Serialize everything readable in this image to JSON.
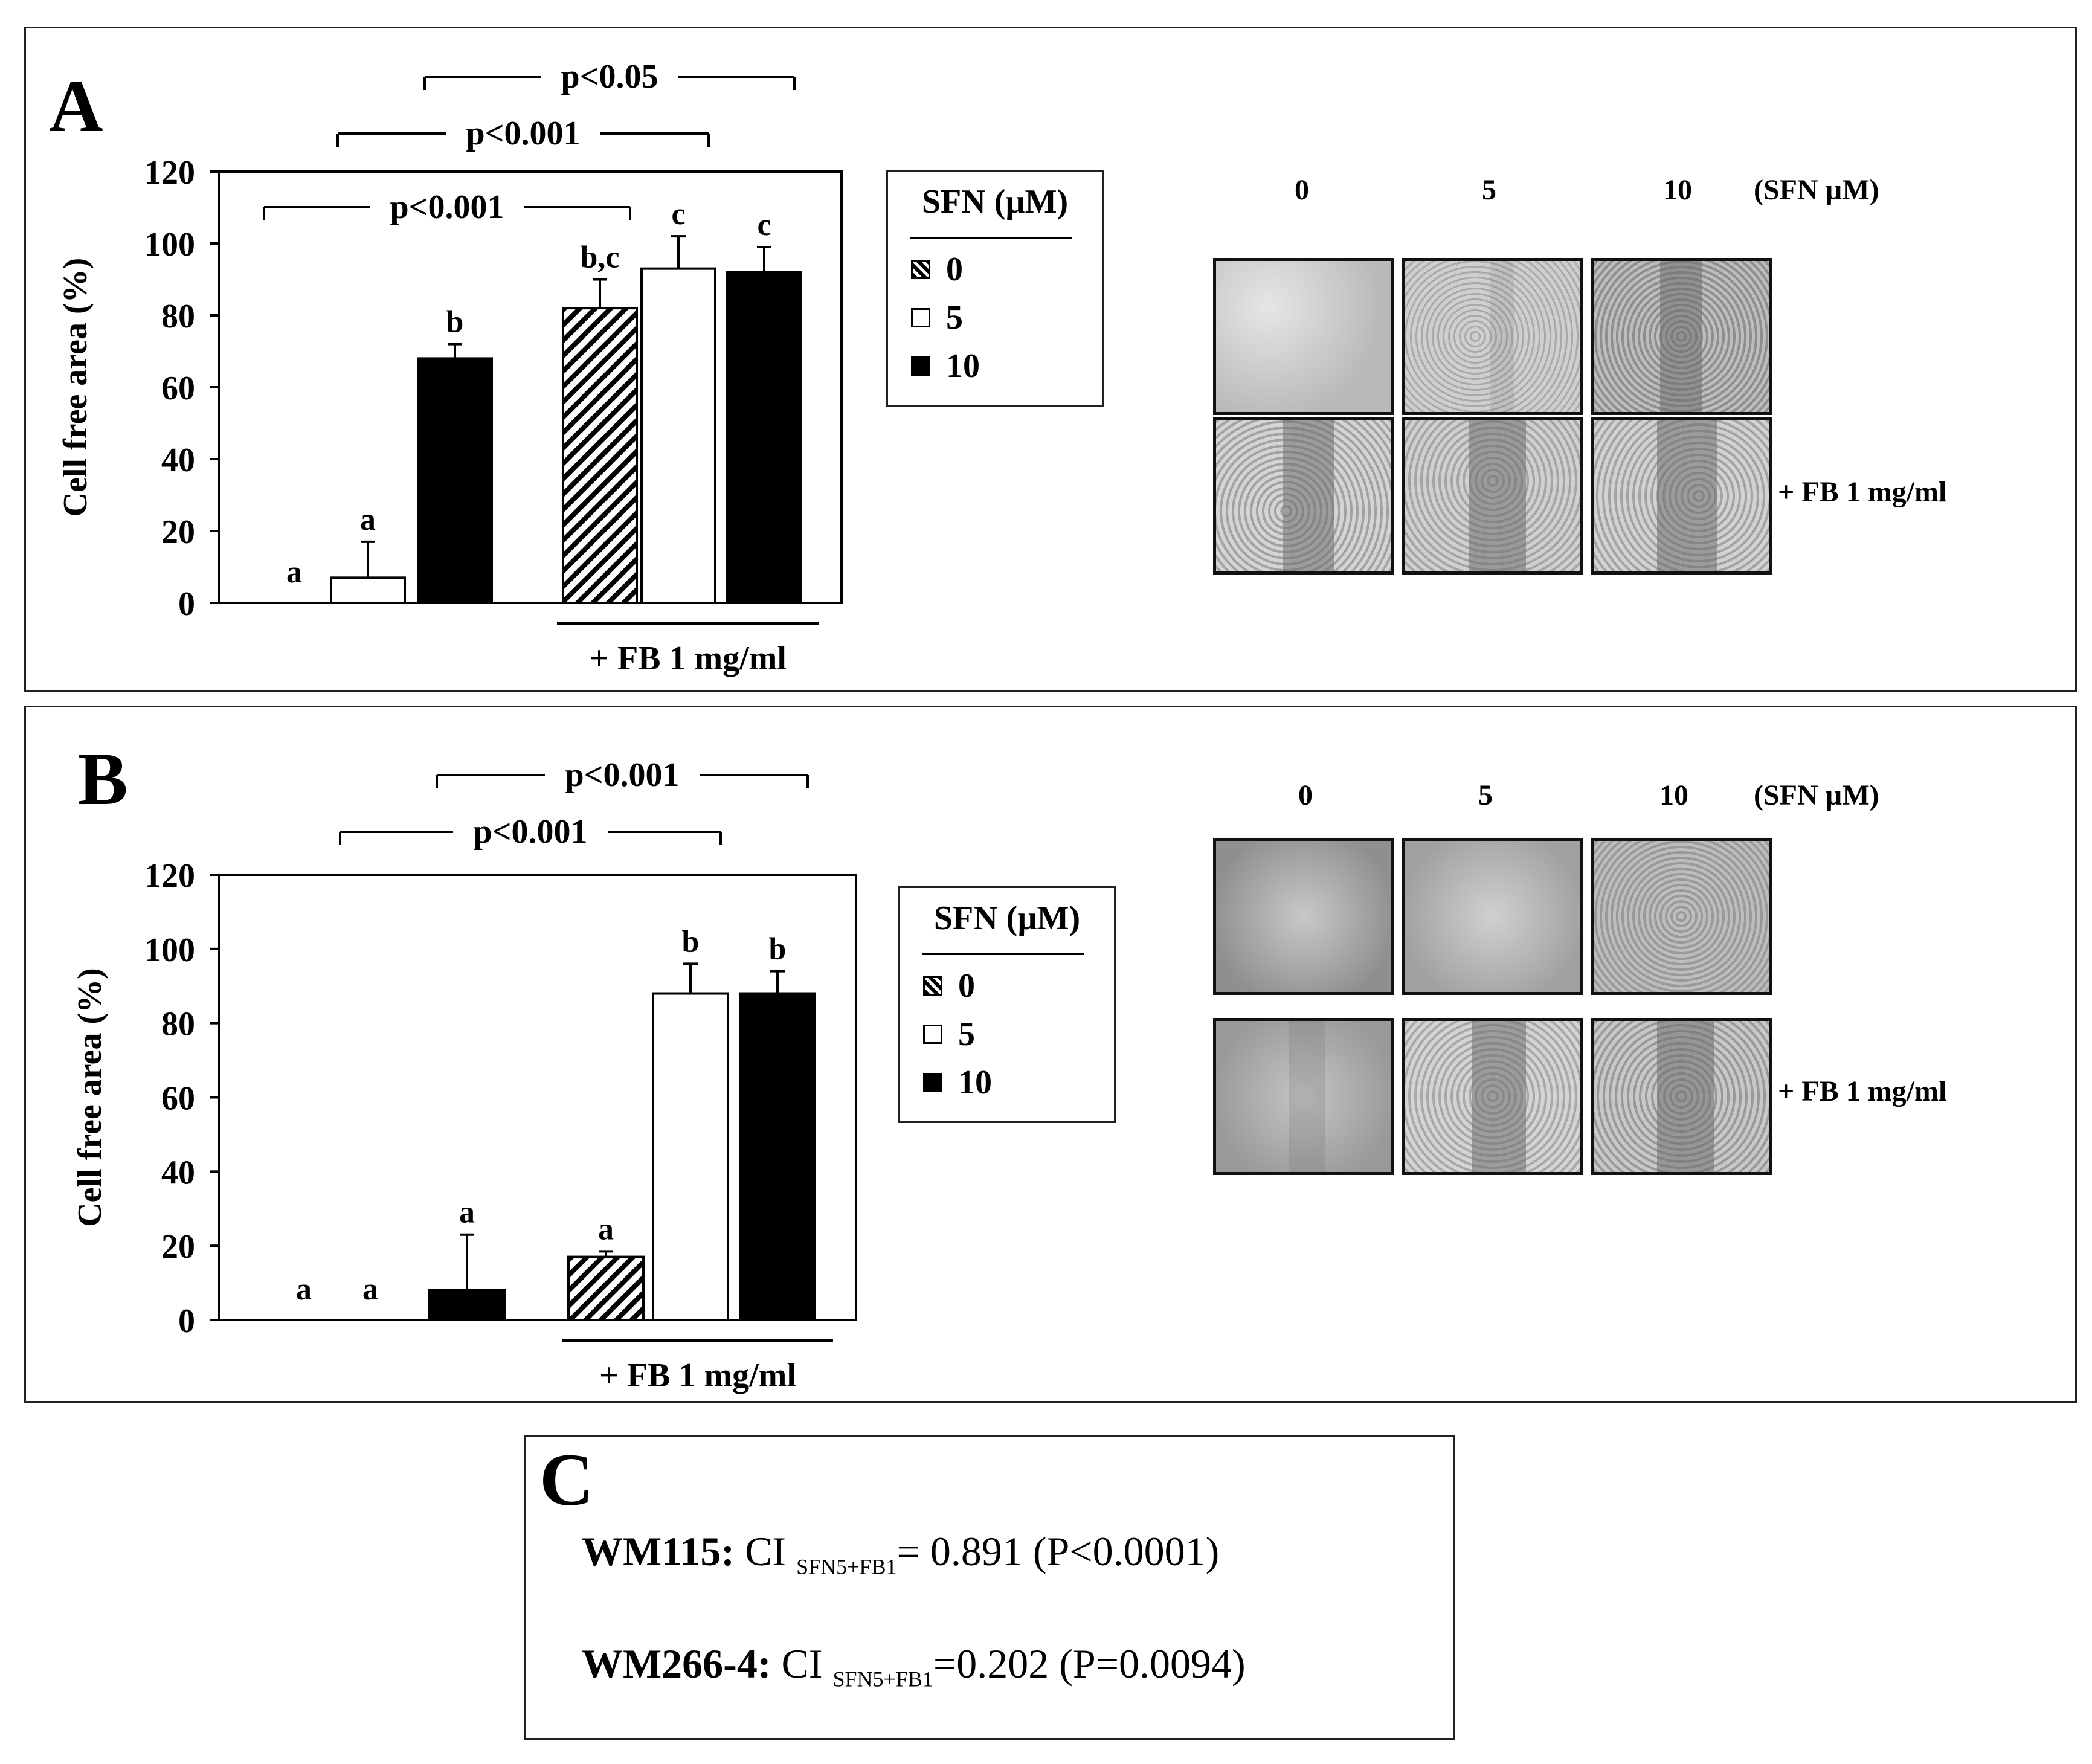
{
  "panels": {
    "a": {
      "label": "A"
    },
    "b": {
      "label": "B"
    },
    "c": {
      "label": "C",
      "lines": [
        {
          "cell": "WM115:",
          "ci": "CI",
          "sub": "SFN5+FB1",
          "value": "=  0.891",
          "p": "(P<0.0001)"
        },
        {
          "cell": "WM266-4:",
          "ci": "CI",
          "sub": "SFN5+FB1",
          "value": "=0.202",
          "p": "(P=0.0094)"
        }
      ]
    }
  },
  "legend": {
    "title": "SFN (µM)",
    "items": [
      {
        "label": "0",
        "pattern": "hatch"
      },
      {
        "label": "5",
        "pattern": "open"
      },
      {
        "label": "10",
        "pattern": "solid"
      }
    ]
  },
  "micrographs": {
    "column_labels": [
      "0",
      "5",
      "10"
    ],
    "unit_label": "(SFN µM)",
    "row_label": "+ FB 1 mg/ml"
  },
  "chart_data": [
    {
      "type": "bar",
      "panel": "A",
      "ylabel": "Cell free area (%)",
      "ylim": [
        0,
        120
      ],
      "yticks": [
        0,
        20,
        40,
        60,
        80,
        100,
        120
      ],
      "group_label": "+ FB 1 mg/ml",
      "bars": [
        {
          "sfn": "0",
          "fb": false,
          "value": 0,
          "error": 0,
          "letter": "a"
        },
        {
          "sfn": "5",
          "fb": false,
          "value": 7,
          "error": 10,
          "letter": "a"
        },
        {
          "sfn": "10",
          "fb": false,
          "value": 68,
          "error": 4,
          "letter": "b"
        },
        {
          "sfn": "0",
          "fb": true,
          "value": 82,
          "error": 8,
          "letter": "b,c"
        },
        {
          "sfn": "5",
          "fb": true,
          "value": 93,
          "error": 9,
          "letter": "c"
        },
        {
          "sfn": "10",
          "fb": true,
          "value": 92,
          "error": 7,
          "letter": "c"
        }
      ],
      "comparisons": [
        {
          "from": 0,
          "to": 3,
          "text": "p<0.001"
        },
        {
          "from": 1,
          "to": 4,
          "text": "p<0.001"
        },
        {
          "from": 2,
          "to": 5,
          "text": "p<0.05"
        }
      ]
    },
    {
      "type": "bar",
      "panel": "B",
      "ylabel": "Cell free area (%)",
      "ylim": [
        0,
        120
      ],
      "yticks": [
        0,
        20,
        40,
        60,
        80,
        100,
        120
      ],
      "group_label": "+ FB 1 mg/ml",
      "bars": [
        {
          "sfn": "0",
          "fb": false,
          "value": 0,
          "error": 0,
          "letter": "a"
        },
        {
          "sfn": "5",
          "fb": false,
          "value": 0,
          "error": 0,
          "letter": "a"
        },
        {
          "sfn": "10",
          "fb": false,
          "value": 8,
          "error": 15,
          "letter": "a"
        },
        {
          "sfn": "0",
          "fb": true,
          "value": 17,
          "error": 1.5,
          "letter": "a"
        },
        {
          "sfn": "5",
          "fb": true,
          "value": 88,
          "error": 8,
          "letter": "b"
        },
        {
          "sfn": "10",
          "fb": true,
          "value": 88,
          "error": 6,
          "letter": "b"
        }
      ],
      "comparisons": [
        {
          "from": 1,
          "to": 4,
          "text": "p<0.001"
        },
        {
          "from": 2,
          "to": 5,
          "text": "p<0.001"
        }
      ]
    }
  ]
}
